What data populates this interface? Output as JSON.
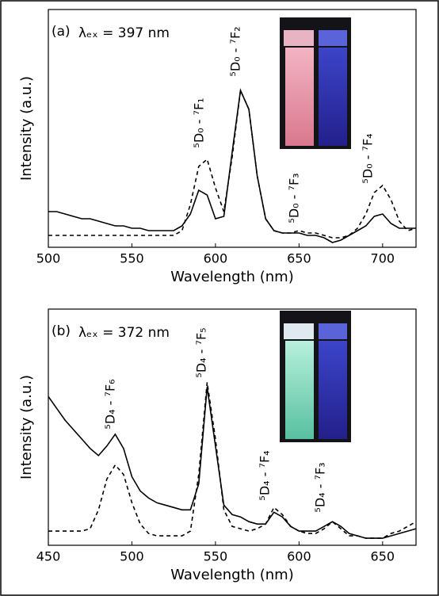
{
  "chart_data": [
    {
      "type": "line",
      "panel_label": "(a)",
      "excitation": "λₑₓ = 397 nm",
      "x_label": "Wavelength (nm)",
      "y_label": "Intensity (a.u.)",
      "xlim": [
        500,
        720
      ],
      "xticks": [
        500,
        550,
        600,
        650,
        700
      ],
      "ylim": [
        0,
        1
      ],
      "x": [
        500,
        505,
        510,
        515,
        520,
        525,
        530,
        535,
        540,
        545,
        550,
        555,
        560,
        565,
        570,
        575,
        580,
        585,
        590,
        595,
        600,
        605,
        610,
        615,
        620,
        625,
        630,
        635,
        640,
        645,
        650,
        655,
        660,
        665,
        670,
        675,
        680,
        685,
        690,
        695,
        700,
        705,
        710,
        715,
        720
      ],
      "series": [
        {
          "color": "#000000",
          "line_style": "solid",
          "values": [
            0.15,
            0.15,
            0.14,
            0.13,
            0.12,
            0.12,
            0.11,
            0.1,
            0.09,
            0.09,
            0.08,
            0.08,
            0.07,
            0.07,
            0.07,
            0.07,
            0.09,
            0.14,
            0.24,
            0.22,
            0.12,
            0.13,
            0.4,
            0.66,
            0.58,
            0.3,
            0.12,
            0.07,
            0.06,
            0.06,
            0.06,
            0.05,
            0.05,
            0.04,
            0.02,
            0.03,
            0.05,
            0.07,
            0.09,
            0.13,
            0.14,
            0.1,
            0.08,
            0.08,
            0.08
          ]
        },
        {
          "color": "#000000",
          "line_style": "dashed",
          "values": [
            0.05,
            0.05,
            0.05,
            0.05,
            0.05,
            0.05,
            0.05,
            0.05,
            0.05,
            0.05,
            0.05,
            0.05,
            0.05,
            0.05,
            0.05,
            0.05,
            0.07,
            0.18,
            0.34,
            0.37,
            0.25,
            0.15,
            0.38,
            0.66,
            0.58,
            0.3,
            0.12,
            0.07,
            0.06,
            0.06,
            0.07,
            0.06,
            0.06,
            0.05,
            0.04,
            0.04,
            0.05,
            0.08,
            0.14,
            0.23,
            0.26,
            0.2,
            0.11,
            0.07,
            0.08
          ]
        }
      ],
      "annotations": [
        "⁵D₀ - ⁷F₁",
        "⁵D₀ - ⁷F₂",
        "⁵D₀ - ⁷F₃",
        "⁵D₀ - ⁷F₄"
      ]
    },
    {
      "type": "line",
      "panel_label": "(b)",
      "excitation": "λₑₓ = 372 nm",
      "x_label": "Wavelength (nm)",
      "y_label": "Intensity (a.u.)",
      "xlim": [
        450,
        670
      ],
      "xticks": [
        450,
        500,
        550,
        600,
        650
      ],
      "ylim": [
        0,
        1
      ],
      "x": [
        450,
        455,
        460,
        465,
        470,
        475,
        480,
        485,
        490,
        495,
        500,
        505,
        510,
        515,
        520,
        525,
        530,
        535,
        540,
        545,
        550,
        555,
        560,
        565,
        570,
        575,
        580,
        585,
        590,
        595,
        600,
        605,
        610,
        615,
        620,
        625,
        630,
        635,
        640,
        645,
        650,
        655,
        660,
        665,
        670
      ],
      "series": [
        {
          "color": "#000000",
          "line_style": "solid",
          "values": [
            0.63,
            0.58,
            0.53,
            0.49,
            0.45,
            0.41,
            0.38,
            0.42,
            0.47,
            0.41,
            0.29,
            0.23,
            0.2,
            0.18,
            0.17,
            0.16,
            0.15,
            0.15,
            0.26,
            0.67,
            0.42,
            0.17,
            0.13,
            0.12,
            0.1,
            0.09,
            0.09,
            0.14,
            0.12,
            0.08,
            0.06,
            0.06,
            0.06,
            0.08,
            0.1,
            0.08,
            0.05,
            0.04,
            0.03,
            0.03,
            0.03,
            0.04,
            0.05,
            0.06,
            0.07
          ]
        },
        {
          "color": "#000000",
          "line_style": "dashed",
          "values": [
            0.06,
            0.06,
            0.06,
            0.06,
            0.06,
            0.07,
            0.15,
            0.28,
            0.34,
            0.3,
            0.18,
            0.09,
            0.05,
            0.04,
            0.04,
            0.04,
            0.04,
            0.06,
            0.3,
            0.69,
            0.45,
            0.15,
            0.08,
            0.07,
            0.06,
            0.07,
            0.09,
            0.16,
            0.13,
            0.08,
            0.06,
            0.05,
            0.05,
            0.07,
            0.1,
            0.07,
            0.04,
            0.04,
            0.03,
            0.03,
            0.03,
            0.05,
            0.06,
            0.08,
            0.1
          ]
        }
      ],
      "annotations": [
        "⁵D₄ - ⁷F₆",
        "⁵D₄ - ⁷F₅",
        "⁵D₄ - ⁷F₄",
        "⁵D₄ - ⁷F₃"
      ]
    }
  ]
}
